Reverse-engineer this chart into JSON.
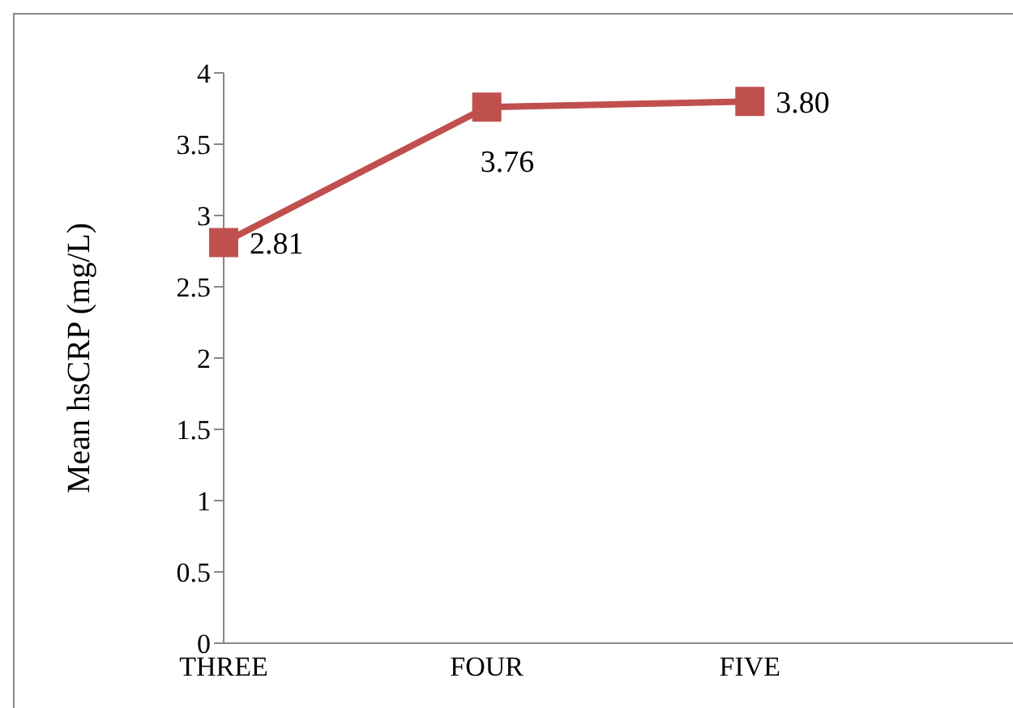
{
  "chart_data": {
    "type": "line",
    "ylabel": "Mean hsCRP (mg/L)",
    "categories": [
      "THREE",
      "FOUR",
      "FIVE",
      null
    ],
    "series": [
      {
        "color": "#c0504d",
        "values": [
          2.81,
          3.76,
          3.8,
          null
        ],
        "value_labels": [
          "2.81",
          "3.76",
          "3.80",
          null
        ]
      }
    ],
    "ylim": [
      0,
      4
    ],
    "yticks": [
      0,
      0.5,
      1,
      1.5,
      2,
      2.5,
      3,
      3.5,
      4
    ],
    "marker": "square",
    "line_style": "solid"
  }
}
